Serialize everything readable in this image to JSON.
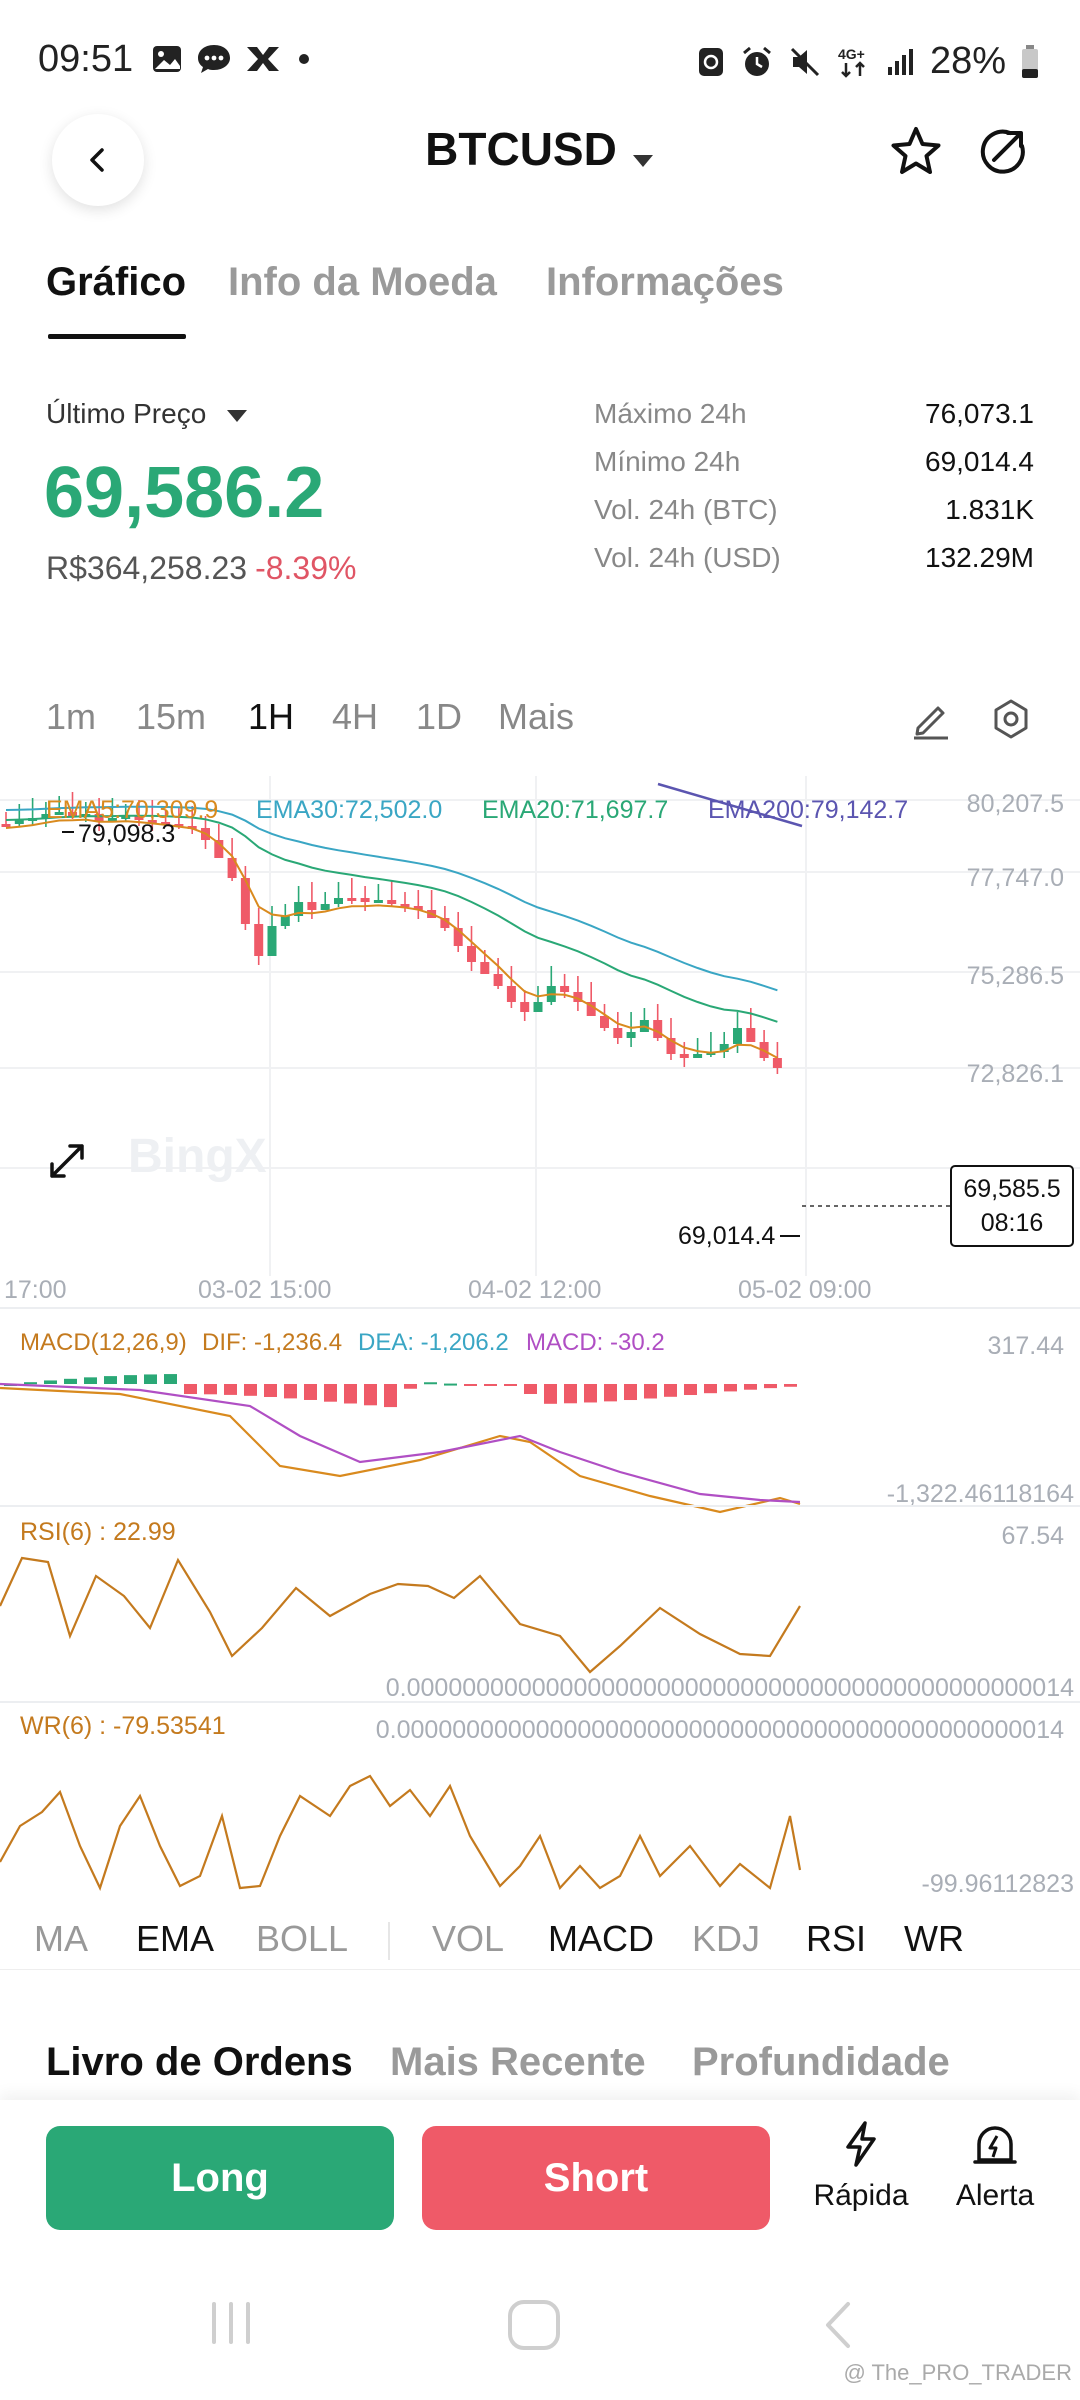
{
  "status_bar": {
    "time": "09:51",
    "network": "4G+",
    "battery": "28%"
  },
  "header": {
    "pair": "BTCUSD"
  },
  "tabs": [
    "Gráfico",
    "Info da Moeda",
    "Informações"
  ],
  "price": {
    "label": "Último Preço",
    "last": "69,586.2",
    "fiat": "R$364,258.23",
    "change": "-8.39%"
  },
  "stats": [
    {
      "label": "Máximo 24h",
      "value": "76,073.1"
    },
    {
      "label": "Mínimo 24h",
      "value": "69,014.4"
    },
    {
      "label": "Vol. 24h (BTC)",
      "value": "1.831K"
    },
    {
      "label": "Vol. 24h (USD)",
      "value": "132.29M"
    }
  ],
  "timeframes": [
    "1m",
    "15m",
    "1H",
    "4H",
    "1D",
    "Mais"
  ],
  "active_timeframe": "1H",
  "chart": {
    "ema_labels": {
      "ema5": "EMA5:70,309.9",
      "ema30": "EMA30:72,502.0",
      "ema20": "EMA20:71,697.7",
      "ema200": "EMA200:79,142.7"
    },
    "y_ticks": [
      "80,207.5",
      "77,747.0",
      "75,286.5",
      "72,826.1"
    ],
    "x_ticks": [
      "17:00",
      "03-02 15:00",
      "04-02 12:00",
      "05-02 09:00"
    ],
    "high_marker": "79,098.3",
    "low_marker": "69,014.4",
    "current_price": "69,585.5",
    "countdown": "08:16",
    "watermark": "BingX"
  },
  "macd": {
    "label": "MACD(12,26,9)",
    "dif": "DIF: -1,236.4",
    "dea": "DEA: -1,206.2",
    "macd": "MACD: -30.2",
    "max": "317.44",
    "min": "-1,322.46118164"
  },
  "rsi": {
    "label": "RSI(6) : 22.99",
    "max": "67.54",
    "min": "0.000000000000000000000000000000000000000000000014"
  },
  "wr": {
    "label": "WR(6) : -79.53541",
    "max": "0.000000000000000000000000000000000000000000000014",
    "min": "-99.96112823"
  },
  "indicators": [
    "MA",
    "EMA",
    "BOLL",
    "VOL",
    "MACD",
    "KDJ",
    "RSI",
    "WR"
  ],
  "order_tabs": [
    "Livro de Ordens",
    "Mais Recente",
    "Profundidade"
  ],
  "actions": {
    "long": "Long",
    "short": "Short",
    "quick": "Rápida",
    "alert": "Alerta"
  },
  "footer": {
    "watermark": "@ The_PRO_TRADER"
  },
  "colors": {
    "up": "#2aa876",
    "down": "#ef5a68",
    "ema5": "#d98a1e",
    "ema20": "#2aa876",
    "ema30": "#3aa6c4",
    "ema200": "#5b55b0"
  }
}
